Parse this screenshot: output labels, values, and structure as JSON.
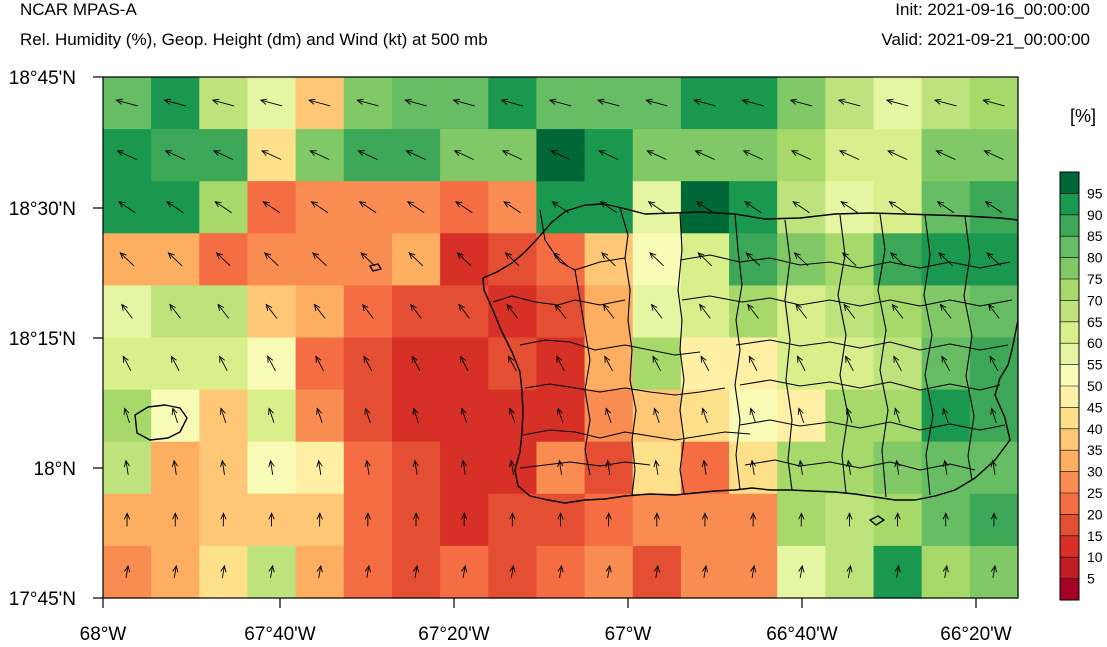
{
  "header": {
    "model": "NCAR MPAS-A",
    "subtitle": "Rel. Humidity (%), Geop. Height (dm) and Wind (kt) at 500 mb",
    "init": "Init: 2021-09-16_00:00:00",
    "valid": "Valid: 2021-09-21_00:00:00"
  },
  "axes": {
    "lon_labels": [
      "68°W",
      "67°40'W",
      "67°20'W",
      "67°W",
      "66°40'W",
      "66°20'W"
    ],
    "lat_labels": [
      "18°45'N",
      "18°30'N",
      "18°15'N",
      "18°N",
      "17°45'N"
    ]
  },
  "colorbar": {
    "unit": "[%]",
    "levels": [
      "5",
      "10",
      "15",
      "20",
      "25",
      "30",
      "35",
      "40",
      "45",
      "50",
      "55",
      "60",
      "65",
      "70",
      "75",
      "80",
      "85",
      "90",
      "95"
    ],
    "colors": [
      "#a50026",
      "#c01d27",
      "#d73027",
      "#e44f33",
      "#f46d43",
      "#f88c51",
      "#fdae61",
      "#fdc775",
      "#fee08b",
      "#fff0a6",
      "#f7fbb6",
      "#e6f5a1",
      "#d9ef8b",
      "#bfe37c",
      "#a6d96a",
      "#81c966",
      "#66bd63",
      "#3ca757",
      "#1a9850",
      "#006837"
    ]
  },
  "grid": {
    "lon_range": [
      -68.0,
      -66.25
    ],
    "lat_range": [
      17.75,
      18.75
    ],
    "cols": 19,
    "rows": 10,
    "classes": [
      [
        16,
        18,
        13,
        11,
        7,
        15,
        16,
        16,
        18,
        16,
        16,
        16,
        18,
        18,
        15,
        13,
        11,
        13,
        14
      ],
      [
        18,
        17,
        17,
        8,
        15,
        17,
        17,
        15,
        15,
        19,
        18,
        15,
        15,
        15,
        14,
        12,
        12,
        15,
        15
      ],
      [
        18,
        18,
        14,
        4,
        5,
        5,
        5,
        4,
        5,
        18,
        18,
        11,
        19,
        18,
        13,
        11,
        12,
        16,
        17
      ],
      [
        6,
        6,
        4,
        5,
        5,
        5,
        6,
        2,
        3,
        4,
        7,
        10,
        12,
        17,
        15,
        14,
        17,
        18,
        18
      ],
      [
        11,
        13,
        13,
        7,
        6,
        4,
        3,
        3,
        2,
        3,
        6,
        11,
        12,
        14,
        12,
        13,
        14,
        15,
        16
      ],
      [
        12,
        12,
        12,
        10,
        4,
        3,
        2,
        2,
        3,
        2,
        6,
        14,
        9,
        9,
        12,
        12,
        13,
        16,
        17
      ],
      [
        14,
        10,
        7,
        12,
        5,
        3,
        2,
        2,
        2,
        2,
        5,
        7,
        8,
        10,
        9,
        14,
        14,
        18,
        17
      ],
      [
        13,
        6,
        7,
        10,
        9,
        4,
        3,
        2,
        2,
        5,
        3,
        8,
        4,
        8,
        14,
        14,
        15,
        16,
        16
      ],
      [
        6,
        6,
        7,
        7,
        7,
        4,
        3,
        2,
        3,
        3,
        4,
        5,
        5,
        5,
        14,
        13,
        14,
        16,
        17
      ],
      [
        5,
        6,
        8,
        13,
        6,
        4,
        3,
        4,
        3,
        4,
        5,
        3,
        5,
        5,
        11,
        13,
        18,
        14,
        15
      ]
    ]
  }
}
